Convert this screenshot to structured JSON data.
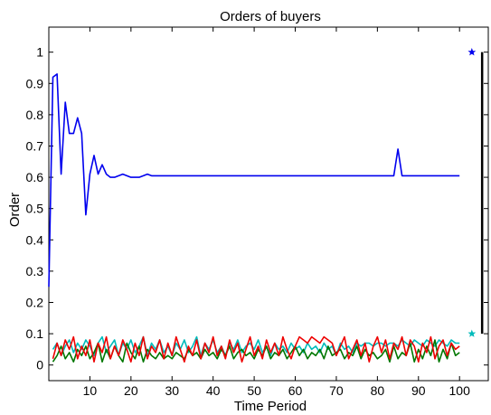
{
  "chart_data": {
    "type": "line",
    "title": "Orders of buyers",
    "xlabel": "Time Period",
    "ylabel": "Order",
    "xlim": [
      0,
      107
    ],
    "ylim": [
      -0.05,
      1.08
    ],
    "xticks": [
      10,
      20,
      30,
      40,
      50,
      60,
      70,
      80,
      90,
      100
    ],
    "yticks": [
      0,
      0.1,
      0.2,
      0.3,
      0.4,
      0.5,
      0.6,
      0.7,
      0.8,
      0.9,
      1
    ],
    "grid": false,
    "series": [
      {
        "color": "#0000ee",
        "x": [
          0,
          1,
          2,
          3,
          4,
          5,
          6,
          7,
          8,
          9,
          10,
          11,
          12,
          13,
          14,
          15,
          16,
          17,
          18,
          19,
          20,
          21,
          22,
          23,
          24,
          25,
          30,
          40,
          50,
          60,
          70,
          80,
          83,
          84,
          85,
          86,
          87,
          90,
          100
        ],
        "y": [
          0.25,
          0.92,
          0.93,
          0.61,
          0.84,
          0.74,
          0.74,
          0.79,
          0.74,
          0.48,
          0.61,
          0.67,
          0.61,
          0.64,
          0.61,
          0.6,
          0.6,
          0.605,
          0.61,
          0.605,
          0.6,
          0.6,
          0.6,
          0.605,
          0.61,
          0.605,
          0.605,
          0.605,
          0.605,
          0.605,
          0.605,
          0.605,
          0.605,
          0.605,
          0.69,
          0.605,
          0.605,
          0.605,
          0.605
        ]
      },
      {
        "color": "#ee0000",
        "x": [
          1,
          2,
          3,
          4,
          5,
          6,
          7,
          8,
          9,
          10,
          11,
          12,
          13,
          14,
          15,
          16,
          17,
          18,
          19,
          20,
          21,
          22,
          23,
          24,
          25,
          26,
          27,
          28,
          29,
          30,
          31,
          32,
          33,
          34,
          35,
          36,
          37,
          38,
          39,
          40,
          41,
          42,
          43,
          44,
          45,
          46,
          47,
          48,
          49,
          50,
          51,
          52,
          53,
          54,
          55,
          56,
          57,
          58,
          59,
          60,
          61,
          62,
          63,
          64,
          65,
          66,
          67,
          68,
          69,
          70,
          71,
          72,
          73,
          74,
          75,
          76,
          77,
          78,
          79,
          80,
          81,
          82,
          83,
          84,
          85,
          86,
          87,
          88,
          89,
          90,
          91,
          92,
          93,
          94,
          95,
          96,
          97,
          98,
          99,
          100
        ],
        "y": [
          0.02,
          0.07,
          0.03,
          0.08,
          0.05,
          0.09,
          0.02,
          0.06,
          0.03,
          0.08,
          0.01,
          0.07,
          0.04,
          0.09,
          0.02,
          0.06,
          0.03,
          0.08,
          0.05,
          0.01,
          0.07,
          0.03,
          0.09,
          0.02,
          0.06,
          0.04,
          0.08,
          0.02,
          0.07,
          0.03,
          0.09,
          0.05,
          0.01,
          0.06,
          0.03,
          0.08,
          0.02,
          0.07,
          0.04,
          0.09,
          0.03,
          0.06,
          0.02,
          0.08,
          0.04,
          0.07,
          0.01,
          0.05,
          0.09,
          0.03,
          0.06,
          0.02,
          0.08,
          0.04,
          0.07,
          0.03,
          0.09,
          0.05,
          0.02,
          0.06,
          0.09,
          0.08,
          0.07,
          0.09,
          0.08,
          0.07,
          0.09,
          0.08,
          0.07,
          0.03,
          0.06,
          0.09,
          0.02,
          0.05,
          0.08,
          0.03,
          0.07,
          0.01,
          0.06,
          0.09,
          0.04,
          0.08,
          0.02,
          0.07,
          0.05,
          0.09,
          0.03,
          0.08,
          0.06,
          0.01,
          0.07,
          0.04,
          0.09,
          0.02,
          0.06,
          0.08,
          0.03,
          0.07,
          0.05,
          0.06
        ]
      },
      {
        "color": "#007700",
        "x": [
          1,
          2,
          3,
          4,
          5,
          6,
          7,
          8,
          9,
          10,
          11,
          12,
          13,
          14,
          15,
          16,
          17,
          18,
          19,
          20,
          21,
          22,
          23,
          24,
          25,
          26,
          27,
          28,
          29,
          30,
          31,
          32,
          33,
          34,
          35,
          36,
          37,
          38,
          39,
          40,
          41,
          42,
          43,
          44,
          45,
          46,
          47,
          48,
          49,
          50,
          51,
          52,
          53,
          54,
          55,
          56,
          57,
          58,
          59,
          60,
          61,
          62,
          63,
          64,
          65,
          66,
          67,
          68,
          69,
          70,
          71,
          72,
          73,
          74,
          75,
          76,
          77,
          78,
          79,
          80,
          81,
          82,
          83,
          84,
          85,
          86,
          87,
          88,
          89,
          90,
          91,
          92,
          93,
          94,
          95,
          96,
          97,
          98,
          99,
          100
        ],
        "y": [
          0.01,
          0.03,
          0.06,
          0.02,
          0.04,
          0.01,
          0.05,
          0.03,
          0.06,
          0.02,
          0.04,
          0.07,
          0.01,
          0.05,
          0.02,
          0.06,
          0.03,
          0.01,
          0.07,
          0.04,
          0.02,
          0.06,
          0.01,
          0.05,
          0.03,
          0.02,
          0.04,
          0.02,
          0.03,
          0.02,
          0.04,
          0.03,
          0.02,
          0.05,
          0.03,
          0.04,
          0.02,
          0.05,
          0.03,
          0.04,
          0.02,
          0.05,
          0.03,
          0.06,
          0.02,
          0.04,
          0.05,
          0.03,
          0.04,
          0.02,
          0.05,
          0.03,
          0.06,
          0.02,
          0.04,
          0.03,
          0.05,
          0.02,
          0.04,
          0.06,
          0.03,
          0.05,
          0.02,
          0.04,
          0.03,
          0.05,
          0.02,
          0.06,
          0.03,
          0.04,
          0.05,
          0.02,
          0.04,
          0.03,
          0.06,
          0.02,
          0.05,
          0.03,
          0.04,
          0.02,
          0.03,
          0.05,
          0.01,
          0.06,
          0.02,
          0.04,
          0.03,
          0.07,
          0.01,
          0.05,
          0.02,
          0.06,
          0.03,
          0.08,
          0.01,
          0.05,
          0.02,
          0.07,
          0.03,
          0.04
        ]
      },
      {
        "color": "#00bbbb",
        "x": [
          1,
          2,
          3,
          4,
          5,
          6,
          7,
          8,
          9,
          10,
          11,
          12,
          13,
          14,
          15,
          16,
          17,
          18,
          19,
          20,
          21,
          22,
          23,
          24,
          25,
          26,
          27,
          28,
          29,
          30,
          31,
          32,
          33,
          34,
          35,
          36,
          37,
          38,
          39,
          40,
          41,
          42,
          43,
          44,
          45,
          46,
          47,
          48,
          49,
          50,
          51,
          52,
          53,
          54,
          55,
          56,
          57,
          58,
          59,
          60,
          61,
          62,
          63,
          64,
          65,
          66,
          67,
          68,
          69,
          70,
          71,
          72,
          73,
          74,
          75,
          76,
          77,
          78,
          79,
          80,
          81,
          82,
          83,
          84,
          85,
          86,
          87,
          88,
          89,
          90,
          91,
          92,
          93,
          94,
          95,
          96,
          97,
          98,
          99,
          100
        ],
        "y": [
          0.05,
          0.07,
          0.03,
          0.06,
          0.08,
          0.04,
          0.07,
          0.05,
          0.08,
          0.06,
          0.03,
          0.07,
          0.09,
          0.04,
          0.06,
          0.08,
          0.03,
          0.07,
          0.05,
          0.08,
          0.04,
          0.06,
          0.09,
          0.03,
          0.07,
          0.05,
          0.08,
          0.04,
          0.06,
          0.03,
          0.07,
          0.05,
          0.08,
          0.04,
          0.06,
          0.09,
          0.03,
          0.07,
          0.05,
          0.08,
          0.04,
          0.06,
          0.03,
          0.07,
          0.05,
          0.08,
          0.04,
          0.06,
          0.07,
          0.05,
          0.08,
          0.04,
          0.06,
          0.03,
          0.07,
          0.05,
          0.06,
          0.04,
          0.07,
          0.05,
          0.06,
          0.04,
          0.07,
          0.05,
          0.06,
          0.04,
          0.07,
          0.05,
          0.06,
          0.03,
          0.07,
          0.05,
          0.06,
          0.04,
          0.07,
          0.06,
          0.07,
          0.07,
          0.06,
          0.07,
          0.07,
          0.06,
          0.07,
          0.07,
          0.06,
          0.08,
          0.07,
          0.06,
          0.08,
          0.07,
          0.06,
          0.08,
          0.07,
          0.06,
          0.08,
          0.07,
          0.06,
          0.08,
          0.07,
          0.07
        ]
      }
    ],
    "markers": [
      {
        "x": 103,
        "y": 1.0,
        "color": "#0000ee",
        "symbol": "star"
      },
      {
        "x": 103,
        "y": 0.1,
        "color": "#00bbbb",
        "symbol": "star"
      }
    ],
    "range_bar": {
      "x": 105.5,
      "y": [
        0.1,
        1.0
      ],
      "color": "#000000"
    }
  }
}
